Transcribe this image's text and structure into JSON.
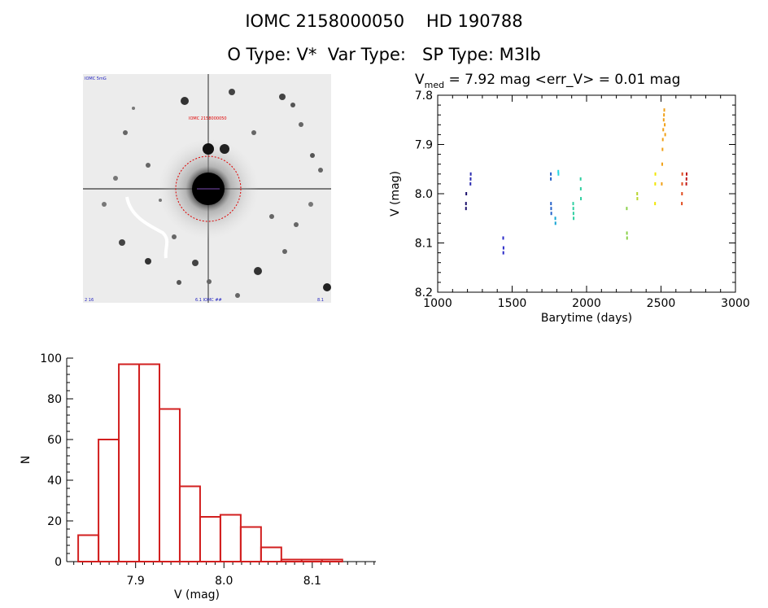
{
  "header": {
    "line1_id": "IOMC 2158000050",
    "line1_hd": "HD 190788",
    "line2_otype": "O Type: V*",
    "line2_vartype": "Var Type:",
    "line2_sptype": "SP Type: M3Ib"
  },
  "image_panel": {
    "corner_label_tl": "IOMC 5mG",
    "center_label": "IOMC 2158000050",
    "bottom_label": "6.1 IOMC ##",
    "corner_label_bl": "2 16",
    "corner_label_br": "8.1"
  },
  "chart_data": [
    {
      "type": "scatter",
      "title_prefix": "V",
      "title_subscript": "med",
      "title_rest": " = 7.92 mag  <err_V> = 0.01 mag",
      "xlabel": "Barytime (days)",
      "ylabel": "V (mag)",
      "xlim": [
        1000,
        3000
      ],
      "ylim": [
        8.2,
        7.8
      ],
      "y_inverted": true,
      "x_ticks": [
        1000,
        1500,
        2000,
        2500,
        3000
      ],
      "y_ticks": [
        7.8,
        7.9,
        8.0,
        8.1,
        8.2
      ],
      "x_tick_labels": [
        "1000",
        "1500",
        "2000",
        "2500",
        "3000"
      ],
      "y_tick_labels": [
        "7.8",
        "7.9",
        "8.0",
        "8.1",
        "8.2"
      ],
      "series": [
        {
          "name": "s1",
          "color": "#1a0f6b",
          "points": [
            [
              1190,
              8.03
            ],
            [
              1190,
              8.02
            ],
            [
              1192,
              8.0
            ]
          ]
        },
        {
          "name": "s2",
          "color": "#2b2bb0",
          "points": [
            [
              1220,
              7.98
            ],
            [
              1221,
              7.97
            ],
            [
              1222,
              7.96
            ]
          ]
        },
        {
          "name": "s3",
          "color": "#2a2ac8",
          "points": [
            [
              1440,
              8.09
            ],
            [
              1441,
              8.12
            ],
            [
              1442,
              8.11
            ]
          ]
        },
        {
          "name": "s4",
          "color": "#2461c9",
          "points": [
            [
              1760,
              7.96
            ],
            [
              1760,
              7.97
            ],
            [
              1761,
              8.02
            ],
            [
              1762,
              8.03
            ],
            [
              1763,
              8.04
            ]
          ]
        },
        {
          "name": "s5",
          "color": "#16a5d4",
          "points": [
            [
              1790,
              8.05
            ],
            [
              1791,
              8.06
            ]
          ]
        },
        {
          "name": "s6",
          "color": "#2bd7e2",
          "points": [
            [
              1810,
              7.955
            ],
            [
              1811,
              7.96
            ]
          ]
        },
        {
          "name": "s7",
          "color": "#2ecfa0",
          "points": [
            [
              1910,
              8.02
            ],
            [
              1911,
              8.03
            ],
            [
              1912,
              8.04
            ],
            [
              1913,
              8.05
            ],
            [
              1960,
              7.97
            ],
            [
              1961,
              7.99
            ],
            [
              1962,
              8.01
            ]
          ]
        },
        {
          "name": "s8",
          "color": "#8ad14a",
          "points": [
            [
              2270,
              8.03
            ],
            [
              2271,
              8.08
            ],
            [
              2272,
              8.09
            ]
          ]
        },
        {
          "name": "s9",
          "color": "#b8d42c",
          "points": [
            [
              2340,
              8.0
            ],
            [
              2341,
              8.01
            ]
          ]
        },
        {
          "name": "s10",
          "color": "#f1e600",
          "points": [
            [
              2460,
              8.02
            ],
            [
              2461,
              7.98
            ],
            [
              2462,
              7.96
            ]
          ]
        },
        {
          "name": "s11",
          "color": "#f0a018",
          "points": [
            [
              2505,
              7.98
            ],
            [
              2508,
              7.94
            ],
            [
              2510,
              7.91
            ],
            [
              2512,
              7.89
            ],
            [
              2515,
              7.87
            ],
            [
              2518,
              7.85
            ],
            [
              2520,
              7.84
            ],
            [
              2522,
              7.83
            ],
            [
              2525,
              7.86
            ],
            [
              2528,
              7.88
            ]
          ]
        },
        {
          "name": "s12",
          "color": "#e04a1e",
          "points": [
            [
              2640,
              8.02
            ],
            [
              2641,
              8.0
            ],
            [
              2642,
              7.98
            ],
            [
              2643,
              7.96
            ]
          ]
        },
        {
          "name": "s13",
          "color": "#c01818",
          "points": [
            [
              2670,
              7.98
            ],
            [
              2671,
              7.97
            ],
            [
              2672,
              7.96
            ]
          ]
        }
      ]
    },
    {
      "type": "bar",
      "xlabel": "V (mag)",
      "ylabel": "N",
      "xlim": [
        7.822,
        8.172
      ],
      "ylim": [
        0,
        100
      ],
      "x_ticks": [
        7.9,
        8.0,
        8.1
      ],
      "x_tick_labels": [
        "7.9",
        "8.0",
        "8.1"
      ],
      "y_ticks": [
        0,
        20,
        40,
        60,
        80,
        100
      ],
      "y_tick_labels": [
        "0",
        "20",
        "40",
        "60",
        "80",
        "100"
      ],
      "bin_edges": [
        7.835,
        7.858,
        7.881,
        7.904,
        7.927,
        7.95,
        7.973,
        7.996,
        8.019,
        8.042,
        8.065,
        8.088,
        8.111,
        8.134
      ],
      "values": [
        13,
        60,
        97,
        97,
        75,
        37,
        22,
        23,
        17,
        7,
        1,
        1,
        1
      ],
      "bar_color": "#d21f1f"
    }
  ]
}
